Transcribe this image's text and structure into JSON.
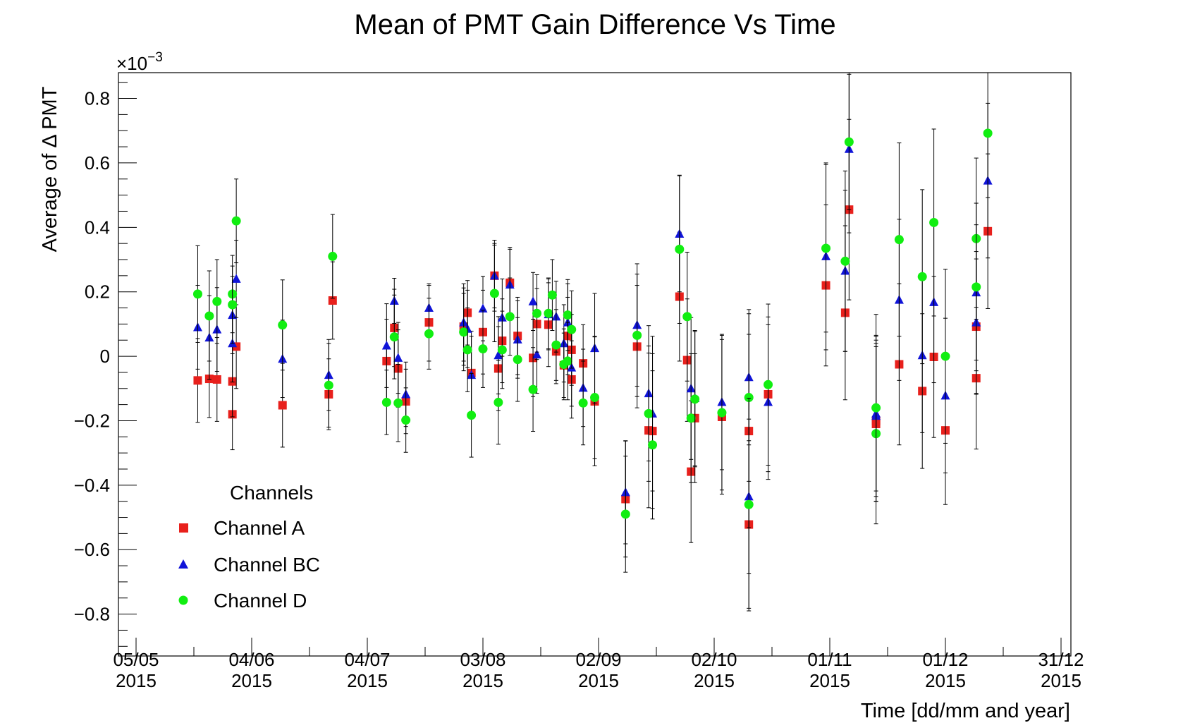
{
  "chart_data": {
    "type": "scatter",
    "title": "Mean of PMT Gain Difference Vs Time",
    "xlabel": "Time [dd/mm and year]",
    "ylabel": "Average of Δ PMT",
    "y_multiplier": "×10",
    "y_multiplier_exp": "−3",
    "y_unit_scale": 0.001,
    "ylim": [
      -0.93,
      0.88
    ],
    "xlim": [
      "2015-05-05",
      "2015-12-31"
    ],
    "x_ticks": [
      {
        "date": "2015-05-05",
        "line1": "05/05",
        "line2": "2015"
      },
      {
        "date": "2015-06-04",
        "line1": "04/06",
        "line2": "2015"
      },
      {
        "date": "2015-07-04",
        "line1": "04/07",
        "line2": "2015"
      },
      {
        "date": "2015-08-03",
        "line1": "03/08",
        "line2": "2015"
      },
      {
        "date": "2015-09-02",
        "line1": "02/09",
        "line2": "2015"
      },
      {
        "date": "2015-10-02",
        "line1": "02/10",
        "line2": "2015"
      },
      {
        "date": "2015-11-01",
        "line1": "01/11",
        "line2": "2015"
      },
      {
        "date": "2015-12-01",
        "line1": "01/12",
        "line2": "2015"
      },
      {
        "date": "2015-12-31",
        "line1": "31/12",
        "line2": "2015"
      }
    ],
    "y_ticks": [
      {
        "value": 0.8,
        "label": "0.8"
      },
      {
        "value": 0.6,
        "label": "0.6"
      },
      {
        "value": 0.4,
        "label": "0.4"
      },
      {
        "value": 0.2,
        "label": "0.2"
      },
      {
        "value": 0,
        "label": "0"
      },
      {
        "value": -0.2,
        "label": "−0.2"
      },
      {
        "value": -0.4,
        "label": "−0.4"
      },
      {
        "value": -0.6,
        "label": "−0.6"
      },
      {
        "value": -0.8,
        "label": "−0.8"
      }
    ],
    "legend": {
      "title": "Channels",
      "position": "bottom-left"
    },
    "series": [
      {
        "name": "Channel A",
        "marker": "square",
        "color": "#e8201c",
        "points": [
          {
            "x": "2015-05-21",
            "y": -0.075,
            "err": 0.13
          },
          {
            "x": "2015-05-24",
            "y": -0.07,
            "err": 0.12
          },
          {
            "x": "2015-05-26",
            "y": -0.072,
            "err": 0.13
          },
          {
            "x": "2015-05-30",
            "y": -0.18,
            "err": 0.11
          },
          {
            "x": "2015-05-30",
            "y": -0.078,
            "err": 0.11
          },
          {
            "x": "2015-05-31",
            "y": 0.03,
            "err": 0.13
          },
          {
            "x": "2015-06-12",
            "y": -0.152,
            "err": 0.13
          },
          {
            "x": "2015-06-24",
            "y": -0.118,
            "err": 0.11
          },
          {
            "x": "2015-06-25",
            "y": 0.173,
            "err": 0.12
          },
          {
            "x": "2015-07-09",
            "y": -0.015,
            "err": 0.13
          },
          {
            "x": "2015-07-11",
            "y": 0.088,
            "err": 0.12
          },
          {
            "x": "2015-07-12",
            "y": -0.038,
            "err": 0.12
          },
          {
            "x": "2015-07-14",
            "y": -0.14,
            "err": 0.1
          },
          {
            "x": "2015-07-20",
            "y": 0.105,
            "err": 0.12
          },
          {
            "x": "2015-07-29",
            "y": 0.092,
            "err": 0.12
          },
          {
            "x": "2015-07-30",
            "y": 0.135,
            "err": 0.1
          },
          {
            "x": "2015-07-31",
            "y": -0.052,
            "err": 0.13
          },
          {
            "x": "2015-08-03",
            "y": 0.075,
            "err": 0.13
          },
          {
            "x": "2015-08-06",
            "y": 0.25,
            "err": 0.1
          },
          {
            "x": "2015-08-07",
            "y": -0.038,
            "err": 0.13
          },
          {
            "x": "2015-08-08",
            "y": 0.048,
            "err": 0.13
          },
          {
            "x": "2015-08-10",
            "y": 0.228,
            "err": 0.11
          },
          {
            "x": "2015-08-12",
            "y": 0.063,
            "err": 0.12
          },
          {
            "x": "2015-08-16",
            "y": -0.005,
            "err": 0.12
          },
          {
            "x": "2015-08-17",
            "y": 0.1,
            "err": 0.11
          },
          {
            "x": "2015-08-20",
            "y": 0.098,
            "err": 0.13
          },
          {
            "x": "2015-08-22",
            "y": 0.015,
            "err": 0.1
          },
          {
            "x": "2015-08-24",
            "y": -0.028,
            "err": 0.1
          },
          {
            "x": "2015-08-25",
            "y": 0.063,
            "err": 0.12
          },
          {
            "x": "2015-08-26",
            "y": -0.072,
            "err": 0.12
          },
          {
            "x": "2015-08-26",
            "y": 0.02,
            "err": 0.11
          },
          {
            "x": "2015-08-29",
            "y": -0.022,
            "err": 0.12
          },
          {
            "x": "2015-09-01",
            "y": -0.14,
            "err": 0.2
          },
          {
            "x": "2015-09-09",
            "y": -0.443,
            "err": 0.18
          },
          {
            "x": "2015-09-12",
            "y": 0.03,
            "err": 0.19
          },
          {
            "x": "2015-09-15",
            "y": -0.23,
            "err": 0.24
          },
          {
            "x": "2015-09-16",
            "y": -0.232,
            "err": 0.24
          },
          {
            "x": "2015-09-23",
            "y": 0.185,
            "err": 0.2
          },
          {
            "x": "2015-09-25",
            "y": -0.012,
            "err": 0.19
          },
          {
            "x": "2015-09-26",
            "y": -0.358,
            "err": 0.22
          },
          {
            "x": "2015-09-27",
            "y": -0.192,
            "err": 0.2
          },
          {
            "x": "2015-10-04",
            "y": -0.188,
            "err": 0.24
          },
          {
            "x": "2015-10-11",
            "y": -0.522,
            "err": 0.26
          },
          {
            "x": "2015-10-11",
            "y": -0.232,
            "err": 0.3
          },
          {
            "x": "2015-10-16",
            "y": -0.118,
            "err": 0.24
          },
          {
            "x": "2015-10-31",
            "y": 0.22,
            "err": 0.25
          },
          {
            "x": "2015-11-05",
            "y": 0.135,
            "err": 0.27
          },
          {
            "x": "2015-11-06",
            "y": 0.455,
            "err": 0.28
          },
          {
            "x": "2015-11-13",
            "y": -0.21,
            "err": 0.24
          },
          {
            "x": "2015-11-13",
            "y": -0.2,
            "err": 0.25
          },
          {
            "x": "2015-11-19",
            "y": -0.025,
            "err": 0.25
          },
          {
            "x": "2015-11-25",
            "y": -0.108,
            "err": 0.24
          },
          {
            "x": "2015-11-28",
            "y": -0.002,
            "err": 0.25
          },
          {
            "x": "2015-12-01",
            "y": -0.23,
            "err": 0.23
          },
          {
            "x": "2015-12-09",
            "y": 0.092,
            "err": 0.21
          },
          {
            "x": "2015-12-09",
            "y": -0.068,
            "err": 0.22
          },
          {
            "x": "2015-12-12",
            "y": 0.388,
            "err": 0.24
          }
        ]
      },
      {
        "name": "Channel BC",
        "marker": "triangle",
        "color": "#1014d8",
        "points": [
          {
            "x": "2015-05-21",
            "y": 0.09,
            "err": 0.13
          },
          {
            "x": "2015-05-24",
            "y": 0.058,
            "err": 0.13
          },
          {
            "x": "2015-05-26",
            "y": 0.083,
            "err": 0.13
          },
          {
            "x": "2015-05-30",
            "y": 0.128,
            "err": 0.12
          },
          {
            "x": "2015-05-30",
            "y": 0.04,
            "err": 0.12
          },
          {
            "x": "2015-05-31",
            "y": 0.24,
            "err": 0.12
          },
          {
            "x": "2015-06-12",
            "y": -0.008,
            "err": 0.12
          },
          {
            "x": "2015-06-24",
            "y": -0.058,
            "err": 0.11
          },
          {
            "x": "2015-07-09",
            "y": 0.033,
            "err": 0.13
          },
          {
            "x": "2015-07-11",
            "y": 0.172,
            "err": 0.07
          },
          {
            "x": "2015-07-12",
            "y": -0.005,
            "err": 0.11
          },
          {
            "x": "2015-07-14",
            "y": -0.118,
            "err": 0.1
          },
          {
            "x": "2015-07-20",
            "y": 0.15,
            "err": 0.07
          },
          {
            "x": "2015-07-29",
            "y": 0.105,
            "err": 0.12
          },
          {
            "x": "2015-07-30",
            "y": 0.085,
            "err": 0.12
          },
          {
            "x": "2015-07-31",
            "y": -0.058,
            "err": 0.12
          },
          {
            "x": "2015-08-03",
            "y": 0.148,
            "err": 0.1
          },
          {
            "x": "2015-08-06",
            "y": 0.25,
            "err": 0.11
          },
          {
            "x": "2015-08-07",
            "y": 0.003,
            "err": 0.12
          },
          {
            "x": "2015-08-08",
            "y": 0.12,
            "err": 0.12
          },
          {
            "x": "2015-08-10",
            "y": 0.222,
            "err": 0.11
          },
          {
            "x": "2015-08-12",
            "y": 0.052,
            "err": 0.12
          },
          {
            "x": "2015-08-16",
            "y": 0.17,
            "err": 0.09
          },
          {
            "x": "2015-08-17",
            "y": 0.005,
            "err": 0.12
          },
          {
            "x": "2015-08-20",
            "y": 0.13,
            "err": 0.11
          },
          {
            "x": "2015-08-22",
            "y": 0.123,
            "err": 0.11
          },
          {
            "x": "2015-08-24",
            "y": 0.04,
            "err": 0.12
          },
          {
            "x": "2015-08-25",
            "y": 0.105,
            "err": 0.12
          },
          {
            "x": "2015-08-26",
            "y": -0.035,
            "err": 0.12
          },
          {
            "x": "2015-08-29",
            "y": -0.098,
            "err": 0.12
          },
          {
            "x": "2015-09-01",
            "y": 0.025,
            "err": 0.17
          },
          {
            "x": "2015-09-09",
            "y": -0.422,
            "err": 0.16
          },
          {
            "x": "2015-09-12",
            "y": 0.097,
            "err": 0.19
          },
          {
            "x": "2015-09-15",
            "y": -0.115,
            "err": 0.21
          },
          {
            "x": "2015-09-16",
            "y": -0.178,
            "err": 0.24
          },
          {
            "x": "2015-09-23",
            "y": 0.38,
            "err": 0.18
          },
          {
            "x": "2015-09-26",
            "y": -0.1,
            "err": 0.22
          },
          {
            "x": "2015-09-27",
            "y": -0.13,
            "err": 0.21
          },
          {
            "x": "2015-10-04",
            "y": -0.142,
            "err": 0.21
          },
          {
            "x": "2015-10-11",
            "y": -0.065,
            "err": 0.21
          },
          {
            "x": "2015-10-11",
            "y": -0.435,
            "err": 0.24
          },
          {
            "x": "2015-10-16",
            "y": -0.142,
            "err": 0.24
          },
          {
            "x": "2015-10-31",
            "y": 0.31,
            "err": 0.29
          },
          {
            "x": "2015-11-05",
            "y": 0.265,
            "err": 0.25
          },
          {
            "x": "2015-11-06",
            "y": 0.643,
            "err": 0.26
          },
          {
            "x": "2015-11-13",
            "y": -0.178,
            "err": 0.24
          },
          {
            "x": "2015-11-13",
            "y": -0.185,
            "err": 0.25
          },
          {
            "x": "2015-11-19",
            "y": 0.175,
            "err": 0.25
          },
          {
            "x": "2015-11-25",
            "y": 0.003,
            "err": 0.24
          },
          {
            "x": "2015-11-28",
            "y": 0.168,
            "err": 0.25
          },
          {
            "x": "2015-12-01",
            "y": -0.122,
            "err": 0.24
          },
          {
            "x": "2015-12-09",
            "y": 0.198,
            "err": 0.21
          },
          {
            "x": "2015-12-09",
            "y": 0.105,
            "err": 0.22
          },
          {
            "x": "2015-12-12",
            "y": 0.545,
            "err": 0.24
          }
        ]
      },
      {
        "name": "Channel D",
        "marker": "circle",
        "color": "#11ee11",
        "points": [
          {
            "x": "2015-05-21",
            "y": 0.193,
            "err": 0.15
          },
          {
            "x": "2015-05-24",
            "y": 0.125,
            "err": 0.14
          },
          {
            "x": "2015-05-26",
            "y": 0.17,
            "err": 0.13
          },
          {
            "x": "2015-05-30",
            "y": 0.193,
            "err": 0.12
          },
          {
            "x": "2015-05-30",
            "y": 0.16,
            "err": 0.12
          },
          {
            "x": "2015-05-31",
            "y": 0.42,
            "err": 0.13
          },
          {
            "x": "2015-06-12",
            "y": 0.097,
            "err": 0.14
          },
          {
            "x": "2015-06-24",
            "y": -0.09,
            "err": 0.13
          },
          {
            "x": "2015-06-25",
            "y": 0.31,
            "err": 0.13
          },
          {
            "x": "2015-07-09",
            "y": -0.143,
            "err": 0.1
          },
          {
            "x": "2015-07-11",
            "y": 0.06,
            "err": 0.13
          },
          {
            "x": "2015-07-12",
            "y": -0.145,
            "err": 0.12
          },
          {
            "x": "2015-07-14",
            "y": -0.198,
            "err": 0.1
          },
          {
            "x": "2015-07-20",
            "y": 0.07,
            "err": 0.11
          },
          {
            "x": "2015-07-29",
            "y": 0.075,
            "err": 0.12
          },
          {
            "x": "2015-07-30",
            "y": 0.02,
            "err": 0.13
          },
          {
            "x": "2015-07-31",
            "y": -0.183,
            "err": 0.13
          },
          {
            "x": "2015-08-03",
            "y": 0.023,
            "err": 0.12
          },
          {
            "x": "2015-08-06",
            "y": 0.195,
            "err": 0.15
          },
          {
            "x": "2015-08-07",
            "y": -0.143,
            "err": 0.13
          },
          {
            "x": "2015-08-08",
            "y": 0.02,
            "err": 0.12
          },
          {
            "x": "2015-08-10",
            "y": 0.123,
            "err": 0.12
          },
          {
            "x": "2015-08-12",
            "y": -0.01,
            "err": 0.13
          },
          {
            "x": "2015-08-16",
            "y": -0.103,
            "err": 0.13
          },
          {
            "x": "2015-08-17",
            "y": 0.133,
            "err": 0.12
          },
          {
            "x": "2015-08-20",
            "y": 0.133,
            "err": 0.11
          },
          {
            "x": "2015-08-21",
            "y": 0.19,
            "err": 0.11
          },
          {
            "x": "2015-08-22",
            "y": 0.035,
            "err": 0.11
          },
          {
            "x": "2015-08-24",
            "y": -0.025,
            "err": 0.11
          },
          {
            "x": "2015-08-25",
            "y": -0.015,
            "err": 0.12
          },
          {
            "x": "2015-08-25",
            "y": 0.128,
            "err": 0.11
          },
          {
            "x": "2015-08-26",
            "y": 0.083,
            "err": 0.12
          },
          {
            "x": "2015-08-29",
            "y": -0.145,
            "err": 0.13
          },
          {
            "x": "2015-09-01",
            "y": -0.128,
            "err": 0.19
          },
          {
            "x": "2015-09-09",
            "y": -0.49,
            "err": 0.18
          },
          {
            "x": "2015-09-12",
            "y": 0.065,
            "err": 0.19
          },
          {
            "x": "2015-09-15",
            "y": -0.178,
            "err": 0.21
          },
          {
            "x": "2015-09-16",
            "y": -0.275,
            "err": 0.23
          },
          {
            "x": "2015-09-23",
            "y": 0.332,
            "err": 0.23
          },
          {
            "x": "2015-09-25",
            "y": 0.123,
            "err": 0.2
          },
          {
            "x": "2015-09-26",
            "y": -0.192,
            "err": 0.2
          },
          {
            "x": "2015-09-27",
            "y": -0.133,
            "err": 0.21
          },
          {
            "x": "2015-10-04",
            "y": -0.175,
            "err": 0.24
          },
          {
            "x": "2015-10-11",
            "y": -0.128,
            "err": 0.26
          },
          {
            "x": "2015-10-11",
            "y": -0.46,
            "err": 0.33
          },
          {
            "x": "2015-10-16",
            "y": -0.088,
            "err": 0.25
          },
          {
            "x": "2015-10-31",
            "y": 0.335,
            "err": 0.26
          },
          {
            "x": "2015-11-05",
            "y": 0.295,
            "err": 0.28
          },
          {
            "x": "2015-11-06",
            "y": 0.665,
            "err": 0.21
          },
          {
            "x": "2015-11-13",
            "y": -0.24,
            "err": 0.28
          },
          {
            "x": "2015-11-13",
            "y": -0.16,
            "err": 0.29
          },
          {
            "x": "2015-11-19",
            "y": 0.362,
            "err": 0.3
          },
          {
            "x": "2015-11-25",
            "y": 0.247,
            "err": 0.27
          },
          {
            "x": "2015-11-28",
            "y": 0.415,
            "err": 0.29
          },
          {
            "x": "2015-12-01",
            "y": 0.0,
            "err": 0.27
          },
          {
            "x": "2015-12-09",
            "y": 0.365,
            "err": 0.25
          },
          {
            "x": "2015-12-09",
            "y": 0.215,
            "err": 0.26
          },
          {
            "x": "2015-12-12",
            "y": 0.692,
            "err": 0.2
          }
        ]
      }
    ]
  }
}
